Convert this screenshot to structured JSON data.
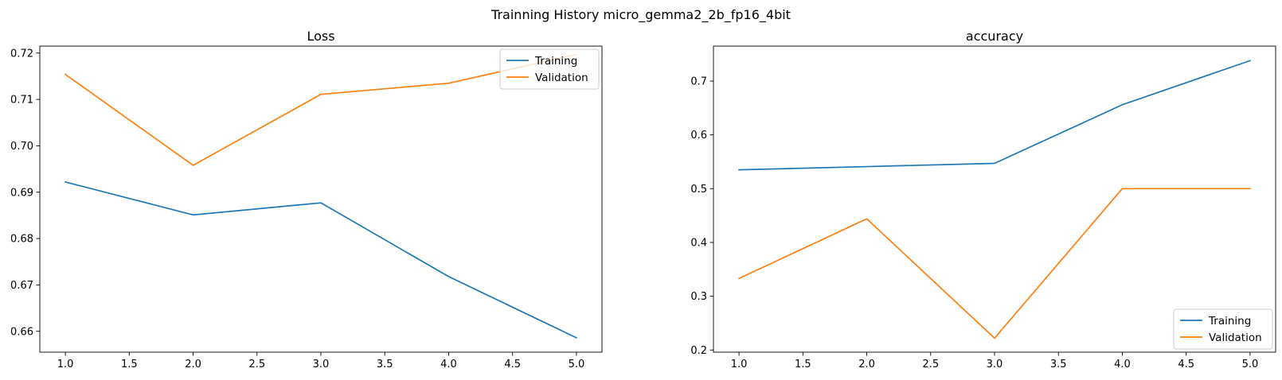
{
  "figure": {
    "suptitle": "Trainning History micro_gemma2_2b_fp16_4bit"
  },
  "chart_data": [
    {
      "type": "line",
      "title": "Loss",
      "xlabel": "",
      "ylabel": "",
      "x": [
        1.0,
        2.0,
        3.0,
        4.0,
        5.0
      ],
      "xlim": [
        0.8,
        5.2
      ],
      "ylim": [
        0.6555,
        0.7215
      ],
      "xticks": [
        1.0,
        1.5,
        2.0,
        2.5,
        3.0,
        3.5,
        4.0,
        4.5,
        5.0
      ],
      "xtick_labels": [
        "1.0",
        "1.5",
        "2.0",
        "2.5",
        "3.0",
        "3.5",
        "4.0",
        "4.5",
        "5.0"
      ],
      "yticks": [
        0.66,
        0.67,
        0.68,
        0.69,
        0.7,
        0.71,
        0.72
      ],
      "ytick_labels": [
        "0.66",
        "0.67",
        "0.68",
        "0.69",
        "0.70",
        "0.71",
        "0.72"
      ],
      "grid": false,
      "legend_position": "upper right",
      "series": [
        {
          "name": "Training",
          "color": "#1f77b4",
          "values": [
            0.6922,
            0.6851,
            0.6877,
            0.6718,
            0.6586
          ]
        },
        {
          "name": "Validation",
          "color": "#ff7f0e",
          "values": [
            0.7154,
            0.6958,
            0.7111,
            0.7135,
            0.7197
          ]
        }
      ]
    },
    {
      "type": "line",
      "title": "accuracy",
      "xlabel": "",
      "ylabel": "",
      "x": [
        1.0,
        2.0,
        3.0,
        4.0,
        5.0
      ],
      "xlim": [
        0.8,
        5.2
      ],
      "ylim": [
        0.196,
        0.765
      ],
      "xticks": [
        1.0,
        1.5,
        2.0,
        2.5,
        3.0,
        3.5,
        4.0,
        4.5,
        5.0
      ],
      "xtick_labels": [
        "1.0",
        "1.5",
        "2.0",
        "2.5",
        "3.0",
        "3.5",
        "4.0",
        "4.5",
        "5.0"
      ],
      "yticks": [
        0.2,
        0.3,
        0.4,
        0.5,
        0.6,
        0.7
      ],
      "ytick_labels": [
        "0.2",
        "0.3",
        "0.4",
        "0.5",
        "0.6",
        "0.7"
      ],
      "grid": false,
      "legend_position": "lower right",
      "series": [
        {
          "name": "Training",
          "color": "#1f77b4",
          "values": [
            0.535,
            0.541,
            0.547,
            0.656,
            0.738
          ]
        },
        {
          "name": "Validation",
          "color": "#ff7f0e",
          "values": [
            0.333,
            0.444,
            0.222,
            0.5,
            0.5
          ]
        }
      ]
    }
  ]
}
